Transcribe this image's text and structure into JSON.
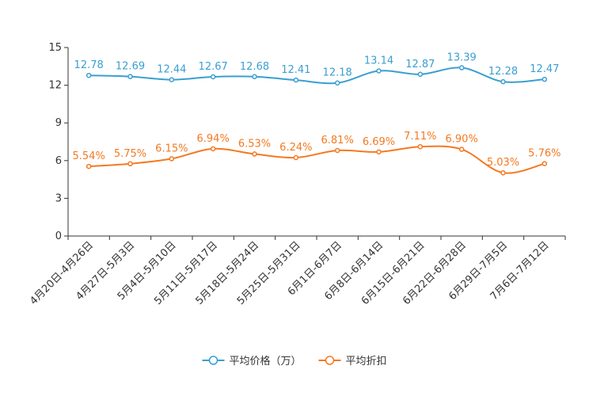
{
  "chart_data": {
    "type": "line",
    "title": "",
    "xlabel": "",
    "ylabel": "",
    "ylim": [
      0,
      15
    ],
    "yticks": [
      0,
      3,
      6,
      9,
      12,
      15
    ],
    "yticks_text": [
      "0",
      "3",
      "6",
      "9",
      "12",
      "15"
    ],
    "categories": [
      "4月20日-4月26日",
      "4月27日-5月3日",
      "5月4日-5月10日",
      "5月11日-5月17日",
      "5月18日-5月24日",
      "5月25日-5月31日",
      "6月1日-6月7日",
      "6月8日-6月14日",
      "6月15日-6月21日",
      "6月22日-6月28日",
      "6月29日-7月5日",
      "7月6日-7月12日"
    ],
    "series": [
      {
        "name": "平均价格（万）",
        "color": "#3a9fd1",
        "values": [
          12.78,
          12.69,
          12.44,
          12.67,
          12.68,
          12.41,
          12.18,
          13.14,
          12.87,
          13.39,
          12.28,
          12.47
        ],
        "labels": [
          "12.78",
          "12.69",
          "12.44",
          "12.67",
          "12.68",
          "12.41",
          "12.18",
          "13.14",
          "12.87",
          "13.39",
          "12.28",
          "12.47"
        ]
      },
      {
        "name": "平均折扣",
        "color": "#f47920",
        "values": [
          5.54,
          5.75,
          6.15,
          6.94,
          6.53,
          6.24,
          6.81,
          6.69,
          7.11,
          6.9,
          5.03,
          5.76
        ],
        "labels": [
          "5.54%",
          "5.75%",
          "6.15%",
          "6.94%",
          "6.53%",
          "6.24%",
          "6.81%",
          "6.69%",
          "7.11%",
          "6.90%",
          "5.03%",
          "5.76%"
        ]
      }
    ],
    "legend_position": "bottom-center"
  }
}
